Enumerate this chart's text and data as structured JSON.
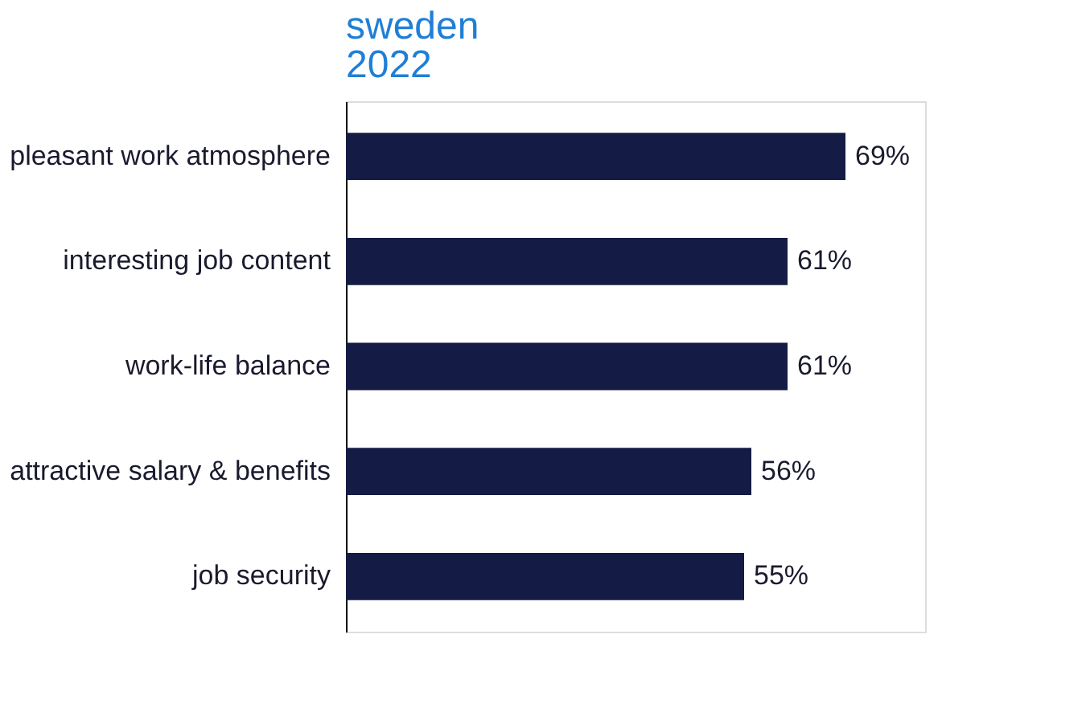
{
  "chart_data": {
    "type": "bar",
    "orientation": "horizontal",
    "title": "sweden",
    "subtitle": "2022",
    "categories": [
      "pleasant work atmosphere",
      "interesting job content",
      "work-life balance",
      "attractive salary & benefits",
      "job security"
    ],
    "values": [
      69,
      61,
      61,
      56,
      55
    ],
    "value_labels": [
      "69%",
      "61%",
      "61%",
      "56%",
      "55%"
    ],
    "color": "#141c45",
    "xlim": [
      0,
      80
    ],
    "tick_labels": "y",
    "grid": false
  }
}
